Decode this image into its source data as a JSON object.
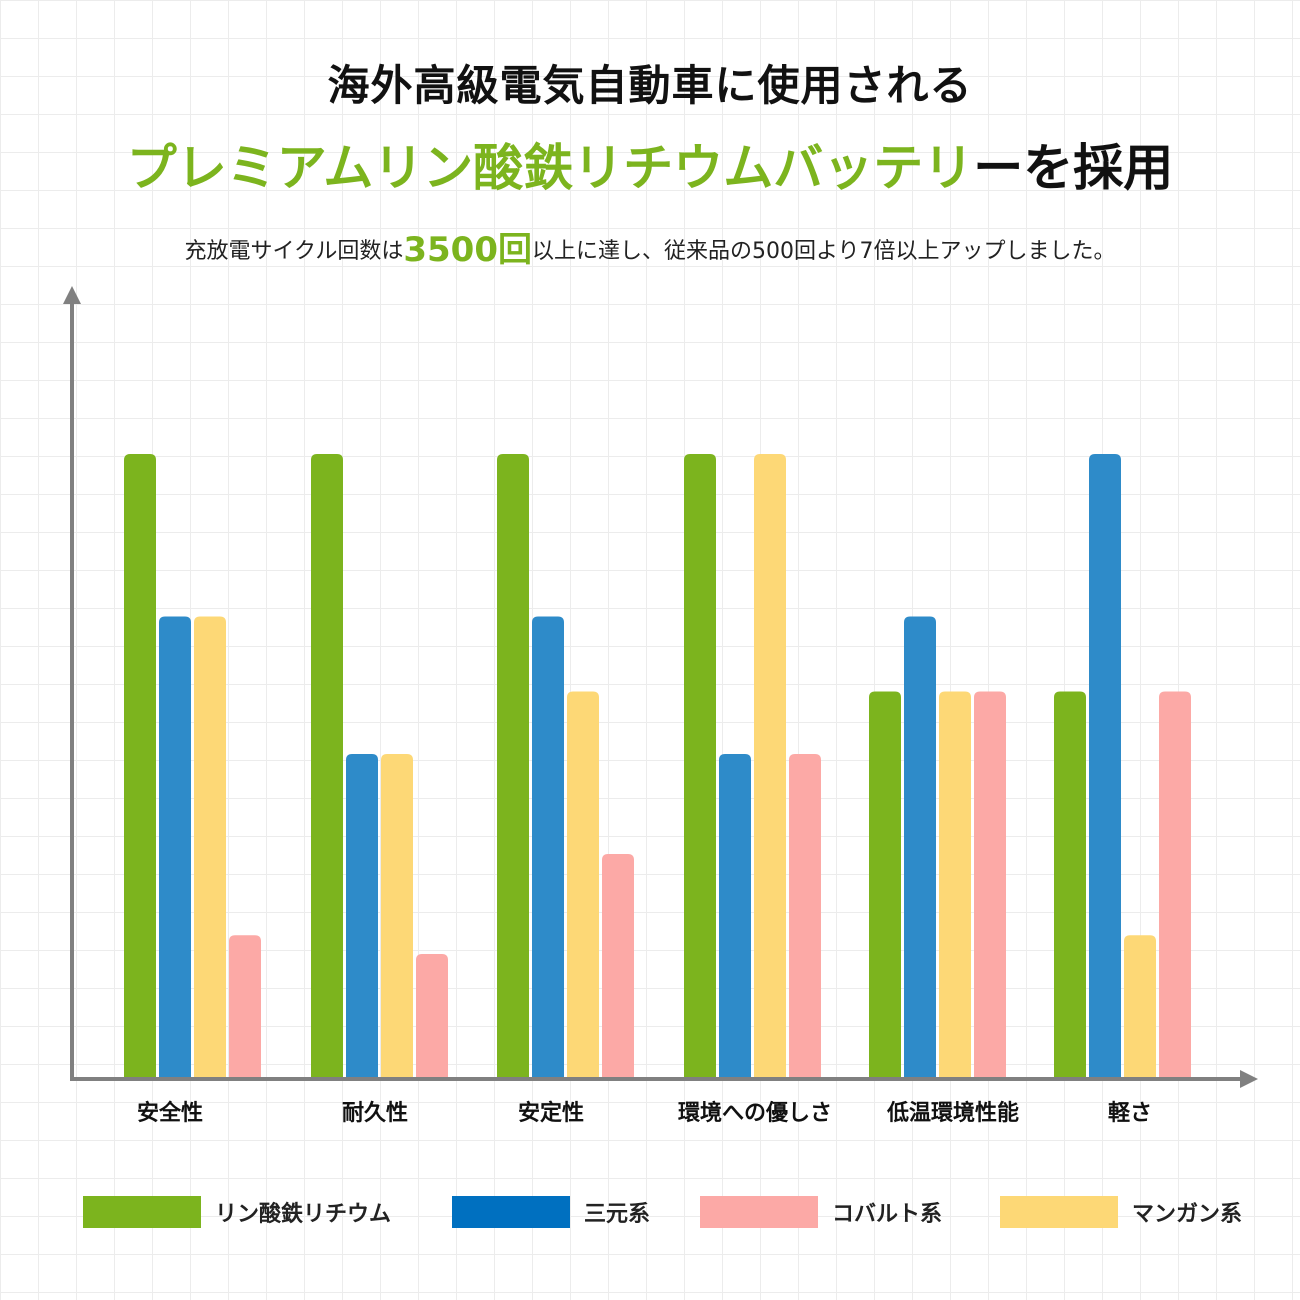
{
  "header": {
    "title_line1": "海外高級電気自動車に使用される",
    "title_line2_highlight": "プレミアムリン酸鉄リチウムバッテリ",
    "title_line2_tail": "ーを採用",
    "subtitle_prefix": "充放電サイクル回数は",
    "subtitle_emphasis": "3500回",
    "subtitle_suffix": "以上に達し、従来品の500回より7倍以上アップしました。"
  },
  "colors": {
    "accent_green": "#7cb41e",
    "axis": "#808080"
  },
  "chart_data": {
    "type": "bar",
    "title": "",
    "xlabel": "",
    "ylabel": "",
    "ylim": [
      0,
      100
    ],
    "categories": [
      "安全性",
      "耐久性",
      "安定性",
      "環境への優しさ",
      "低温環境性能",
      "軽さ"
    ],
    "series": [
      {
        "name": "リン酸鉄リチウム",
        "color": "#7cb41e",
        "values": [
          100,
          100,
          100,
          100,
          62,
          62
        ]
      },
      {
        "name": "三元系",
        "color": "#2e8bc9",
        "values": [
          74,
          52,
          74,
          52,
          74,
          100
        ]
      },
      {
        "name": "マンガン系",
        "color": "#fdd876",
        "values": [
          74,
          52,
          62,
          null,
          62,
          23
        ]
      },
      {
        "name": "コバルト系",
        "color": "#fca9a6",
        "values": [
          23,
          20,
          36,
          52,
          62,
          62
        ]
      }
    ],
    "extra_bars": [
      {
        "category_index": 3,
        "series_name": "マンガン系",
        "value": 100
      }
    ],
    "legend": {
      "placement": "bottom",
      "items": [
        {
          "label": "リン酸鉄リチウム",
          "color": "#7cb41e"
        },
        {
          "label": "三元系",
          "color": "#0070c0"
        },
        {
          "label": "コバルト系",
          "color": "#fca9a6"
        },
        {
          "label": "マンガン系",
          "color": "#fdd876"
        }
      ]
    },
    "grid": true
  }
}
